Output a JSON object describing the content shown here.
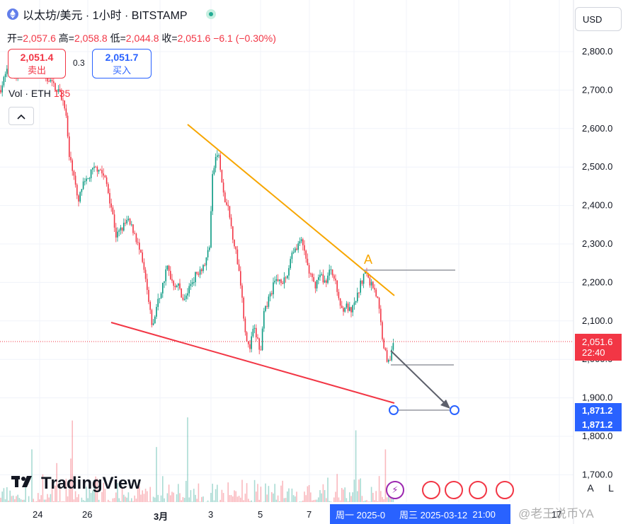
{
  "header": {
    "symbol_title": "以太坊/美元 · 1小时 · BITSTAMP",
    "ohlc": {
      "open_label": "开",
      "open": "2,057.6",
      "high_label": "高",
      "high": "2,058.8",
      "low_label": "低",
      "low": "2,044.8",
      "close_label": "收",
      "close": "2,051.6",
      "change": "−6.1 (−0.30%)"
    }
  },
  "trade": {
    "sell_price": "2,051.4",
    "sell_label": "卖出",
    "spread": "0.3",
    "buy_price": "2,051.7",
    "buy_label": "买入"
  },
  "volume": {
    "label": "Vol · ETH",
    "value": "135"
  },
  "currency_button": "USD",
  "price_tag": {
    "price": "2,051.6",
    "countdown": "22:40"
  },
  "blue_tags": [
    "1,871.2",
    "1,871.2"
  ],
  "annotation_label": "A",
  "brand": "TradingView",
  "scale_buttons": [
    "A",
    "L"
  ],
  "watermark": "@老王说币YA",
  "x_axis": {
    "labels": [
      "24",
      "26",
      "3月",
      "3",
      "5",
      "7"
    ],
    "selected_range": [
      "周一 2025-0",
      "周三 2025-03-12",
      "21:00"
    ],
    "right_label": "17"
  },
  "colors": {
    "up": "#089981",
    "down": "#f23645",
    "resistance": "#f7a600",
    "support": "#f23645",
    "accent": "#2962ff"
  },
  "chart_data": {
    "type": "candlestick",
    "title": "以太坊/美元 · 1小时 · BITSTAMP",
    "y_ticks": [
      2800,
      2700,
      2600,
      2500,
      2400,
      2300,
      2200,
      2100,
      2000,
      1900,
      1800,
      1700
    ],
    "ylim": [
      1670,
      2880
    ],
    "last_price": 2051.6,
    "target_price": 1871.2,
    "price_path": [
      [
        0,
        2700
      ],
      [
        8,
        2740
      ],
      [
        14,
        2760
      ],
      [
        22,
        2730
      ],
      [
        30,
        2780
      ],
      [
        40,
        2780
      ],
      [
        50,
        2760
      ],
      [
        62,
        2740
      ],
      [
        72,
        2720
      ],
      [
        82,
        2700
      ],
      [
        92,
        2660
      ],
      [
        98,
        2520
      ],
      [
        104,
        2490
      ],
      [
        110,
        2400
      ],
      [
        116,
        2450
      ],
      [
        122,
        2460
      ],
      [
        130,
        2490
      ],
      [
        140,
        2500
      ],
      [
        150,
        2460
      ],
      [
        158,
        2390
      ],
      [
        164,
        2320
      ],
      [
        172,
        2340
      ],
      [
        180,
        2360
      ],
      [
        190,
        2330
      ],
      [
        200,
        2260
      ],
      [
        206,
        2200
      ],
      [
        212,
        2120
      ],
      [
        216,
        2080
      ],
      [
        220,
        2130
      ],
      [
        228,
        2180
      ],
      [
        236,
        2240
      ],
      [
        244,
        2200
      ],
      [
        252,
        2190
      ],
      [
        260,
        2150
      ],
      [
        270,
        2200
      ],
      [
        280,
        2230
      ],
      [
        290,
        2250
      ],
      [
        296,
        2300
      ],
      [
        300,
        2470
      ],
      [
        304,
        2520
      ],
      [
        308,
        2540
      ],
      [
        312,
        2480
      ],
      [
        316,
        2420
      ],
      [
        322,
        2390
      ],
      [
        328,
        2330
      ],
      [
        334,
        2270
      ],
      [
        340,
        2200
      ],
      [
        346,
        2080
      ],
      [
        352,
        2020
      ],
      [
        358,
        2080
      ],
      [
        364,
        2050
      ],
      [
        368,
        2010
      ],
      [
        372,
        2110
      ],
      [
        380,
        2160
      ],
      [
        388,
        2200
      ],
      [
        396,
        2210
      ],
      [
        404,
        2200
      ],
      [
        412,
        2280
      ],
      [
        418,
        2290
      ],
      [
        424,
        2310
      ],
      [
        430,
        2280
      ],
      [
        436,
        2230
      ],
      [
        444,
        2190
      ],
      [
        452,
        2220
      ],
      [
        460,
        2200
      ],
      [
        468,
        2240
      ],
      [
        476,
        2180
      ],
      [
        482,
        2130
      ],
      [
        488,
        2140
      ],
      [
        496,
        2120
      ],
      [
        504,
        2160
      ],
      [
        510,
        2200
      ],
      [
        516,
        2230
      ],
      [
        522,
        2200
      ],
      [
        528,
        2190
      ],
      [
        534,
        2150
      ],
      [
        540,
        2060
      ],
      [
        546,
        2000
      ],
      [
        552,
        2010
      ],
      [
        558,
        2051.6
      ]
    ]
  }
}
